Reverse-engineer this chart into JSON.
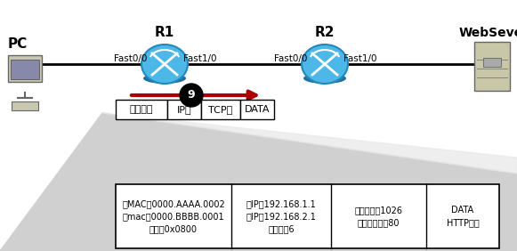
{
  "white_bg": "#ffffff",
  "pc_label": "PC",
  "server_label": "WebSever",
  "r1_label": "R1",
  "r2_label": "R2",
  "r1_left_port": "Fast0/0",
  "r1_right_port": "Fast1/0",
  "r2_left_port": "Fast0/0",
  "r2_right_port": "Fast1/0",
  "arrow_label": "9",
  "packet_fields": [
    "以太网头",
    "IP头",
    "TCP头",
    "DATA"
  ],
  "col1_text_lines": [
    "源MAC：0000.AAAA.0002",
    "目mac：0000.BBBB.0001",
    "类型：0x0800"
  ],
  "col2_text_lines": [
    "源IP：192.168.1.1",
    "目IP：192.168.2.1",
    "协议号：6"
  ],
  "col3_text_lines": [
    "源端口号：1026",
    "目的端口号：80"
  ],
  "col4_text_lines": [
    "DATA",
    "HTTP荷载"
  ],
  "router_color": "#4db8e8",
  "router_edge": "#2288bb",
  "line_color": "#000000",
  "arrow_color": "#aa0000"
}
